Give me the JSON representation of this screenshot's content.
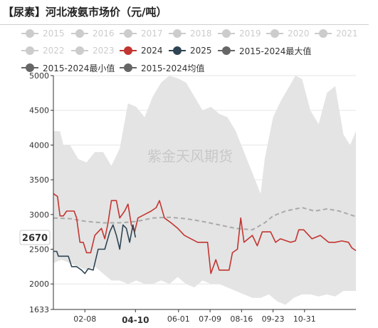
{
  "title": "【尿素】河北液氨市场价（元/吨）",
  "watermark": "紫金天风期货",
  "legend": [
    {
      "label": "2015",
      "color": "#cccccc",
      "shape": "circle",
      "active": false
    },
    {
      "label": "2016",
      "color": "#cccccc",
      "shape": "circle",
      "active": false
    },
    {
      "label": "2017",
      "color": "#cccccc",
      "shape": "circle",
      "active": false
    },
    {
      "label": "2018",
      "color": "#cccccc",
      "shape": "circle",
      "active": false
    },
    {
      "label": "2019",
      "color": "#cccccc",
      "shape": "circle",
      "active": false
    },
    {
      "label": "2020",
      "color": "#cccccc",
      "shape": "circle",
      "active": false
    },
    {
      "label": "2021",
      "color": "#cccccc",
      "shape": "circle",
      "active": false
    },
    {
      "label": "2022",
      "color": "#cccccc",
      "shape": "circle",
      "active": false
    },
    {
      "label": "2023",
      "color": "#cccccc",
      "shape": "circle",
      "active": false
    },
    {
      "label": "2024",
      "color": "#c23531",
      "shape": "circle",
      "active": true
    },
    {
      "label": "2025",
      "color": "#2f4554",
      "shape": "circle",
      "active": true
    },
    {
      "label": "2015-2024最大值",
      "color": "#666666",
      "shape": "circle",
      "active": true
    },
    {
      "label": "2015-2024最小值",
      "color": "#666666",
      "shape": "circle",
      "active": true
    },
    {
      "label": "2015-2024均值",
      "color": "#666666",
      "shape": "circle",
      "active": true
    }
  ],
  "chart_data": {
    "type": "line",
    "title": "【尿素】河北液氨市场价（元/吨）",
    "ylim": [
      1633,
      5000
    ],
    "y_ticks": [
      2000,
      2500,
      3000,
      3500,
      4000,
      4500,
      5000
    ],
    "y_min_label": "1633",
    "x_domain": [
      0,
      365
    ],
    "x_tick_labels": [
      {
        "label": "02-08",
        "day": 38
      },
      {
        "label": "04-10",
        "day": 99
      },
      {
        "label": "06-01",
        "day": 151
      },
      {
        "label": "07-09",
        "day": 189
      },
      {
        "label": "08-16",
        "day": 227
      },
      {
        "label": "09-23",
        "day": 265
      },
      {
        "label": "10-31",
        "day": 303
      }
    ],
    "hover": {
      "x_label": "04-10",
      "x_day": 99,
      "y_value": 2670
    },
    "colors": {
      "y2024": "#c23531",
      "y2025": "#2f4554",
      "band": "#e4e4e4",
      "mean": "#aaaaaa"
    },
    "band_max": [
      [
        0,
        4200
      ],
      [
        8,
        4200
      ],
      [
        12,
        4000
      ],
      [
        20,
        4000
      ],
      [
        30,
        3800
      ],
      [
        40,
        3750
      ],
      [
        50,
        3900
      ],
      [
        60,
        3900
      ],
      [
        70,
        3700
      ],
      [
        80,
        3950
      ],
      [
        90,
        4600
      ],
      [
        100,
        4550
      ],
      [
        110,
        4400
      ],
      [
        120,
        4700
      ],
      [
        130,
        4900
      ],
      [
        140,
        5000
      ],
      [
        150,
        4960
      ],
      [
        160,
        4900
      ],
      [
        170,
        4700
      ],
      [
        180,
        4500
      ],
      [
        190,
        4550
      ],
      [
        200,
        4450
      ],
      [
        210,
        4400
      ],
      [
        220,
        4200
      ],
      [
        230,
        3900
      ],
      [
        240,
        3600
      ],
      [
        250,
        3300
      ],
      [
        255,
        3800
      ],
      [
        265,
        4400
      ],
      [
        275,
        4650
      ],
      [
        285,
        4850
      ],
      [
        292,
        5000
      ],
      [
        300,
        4950
      ],
      [
        310,
        4500
      ],
      [
        320,
        4300
      ],
      [
        330,
        4750
      ],
      [
        340,
        4850
      ],
      [
        350,
        4150
      ],
      [
        358,
        4000
      ],
      [
        365,
        4200
      ]
    ],
    "band_min": [
      [
        0,
        2300
      ],
      [
        10,
        2350
      ],
      [
        20,
        2300
      ],
      [
        30,
        2250
      ],
      [
        40,
        2200
      ],
      [
        50,
        2250
      ],
      [
        60,
        2150
      ],
      [
        70,
        2050
      ],
      [
        80,
        2050
      ],
      [
        90,
        2000
      ],
      [
        100,
        2050
      ],
      [
        110,
        2000
      ],
      [
        120,
        2000
      ],
      [
        130,
        2050
      ],
      [
        140,
        2000
      ],
      [
        150,
        2100
      ],
      [
        160,
        2000
      ],
      [
        170,
        1950
      ],
      [
        180,
        2050
      ],
      [
        190,
        2000
      ],
      [
        200,
        2000
      ],
      [
        210,
        1950
      ],
      [
        220,
        1900
      ],
      [
        230,
        1850
      ],
      [
        240,
        1800
      ],
      [
        250,
        1800
      ],
      [
        260,
        1850
      ],
      [
        270,
        1750
      ],
      [
        280,
        1700
      ],
      [
        290,
        1800
      ],
      [
        300,
        1850
      ],
      [
        310,
        1850
      ],
      [
        320,
        1820
      ],
      [
        330,
        1850
      ],
      [
        340,
        1820
      ],
      [
        350,
        1900
      ],
      [
        365,
        1900
      ]
    ],
    "series": [
      {
        "name": "2015-2024均值",
        "style": "dashed",
        "points": [
          [
            0,
            2950
          ],
          [
            20,
            2940
          ],
          [
            40,
            2900
          ],
          [
            60,
            2880
          ],
          [
            80,
            2880
          ],
          [
            100,
            2900
          ],
          [
            120,
            2950
          ],
          [
            140,
            2960
          ],
          [
            160,
            2940
          ],
          [
            180,
            2900
          ],
          [
            200,
            2850
          ],
          [
            220,
            2800
          ],
          [
            240,
            2780
          ],
          [
            255,
            2880
          ],
          [
            265,
            2980
          ],
          [
            280,
            3050
          ],
          [
            300,
            3100
          ],
          [
            315,
            3050
          ],
          [
            330,
            3080
          ],
          [
            345,
            3050
          ],
          [
            365,
            2970
          ]
        ]
      },
      {
        "name": "2024",
        "style": "solid",
        "points": [
          [
            0,
            3300
          ],
          [
            5,
            3260
          ],
          [
            8,
            2980
          ],
          [
            12,
            2980
          ],
          [
            16,
            3050
          ],
          [
            25,
            3050
          ],
          [
            28,
            2950
          ],
          [
            32,
            2600
          ],
          [
            36,
            2600
          ],
          [
            40,
            2450
          ],
          [
            45,
            2450
          ],
          [
            50,
            2700
          ],
          [
            58,
            2800
          ],
          [
            62,
            2650
          ],
          [
            66,
            2880
          ],
          [
            70,
            3200
          ],
          [
            76,
            3200
          ],
          [
            80,
            2950
          ],
          [
            86,
            3050
          ],
          [
            90,
            3150
          ],
          [
            94,
            2850
          ],
          [
            98,
            2750
          ],
          [
            102,
            2950
          ],
          [
            110,
            3000
          ],
          [
            118,
            3050
          ],
          [
            124,
            3100
          ],
          [
            128,
            3200
          ],
          [
            134,
            2950
          ],
          [
            142,
            2880
          ],
          [
            150,
            2800
          ],
          [
            158,
            2700
          ],
          [
            166,
            2650
          ],
          [
            174,
            2600
          ],
          [
            182,
            2600
          ],
          [
            186,
            2600
          ],
          [
            190,
            2150
          ],
          [
            196,
            2350
          ],
          [
            200,
            2200
          ],
          [
            206,
            2200
          ],
          [
            212,
            2200
          ],
          [
            216,
            2450
          ],
          [
            222,
            2500
          ],
          [
            226,
            2950
          ],
          [
            230,
            2600
          ],
          [
            240,
            2700
          ],
          [
            246,
            2550
          ],
          [
            252,
            2750
          ],
          [
            262,
            2750
          ],
          [
            268,
            2600
          ],
          [
            274,
            2650
          ],
          [
            286,
            2600
          ],
          [
            292,
            2620
          ],
          [
            296,
            2780
          ],
          [
            302,
            2780
          ],
          [
            312,
            2650
          ],
          [
            322,
            2700
          ],
          [
            332,
            2600
          ],
          [
            340,
            2600
          ],
          [
            348,
            2620
          ],
          [
            356,
            2600
          ],
          [
            360,
            2520
          ],
          [
            365,
            2480
          ]
        ]
      },
      {
        "name": "2025",
        "style": "solid",
        "points": [
          [
            0,
            2470
          ],
          [
            4,
            2470
          ],
          [
            6,
            2400
          ],
          [
            18,
            2400
          ],
          [
            22,
            2250
          ],
          [
            28,
            2250
          ],
          [
            34,
            2200
          ],
          [
            38,
            2150
          ],
          [
            42,
            2220
          ],
          [
            48,
            2200
          ],
          [
            54,
            2500
          ],
          [
            62,
            2500
          ],
          [
            68,
            2750
          ],
          [
            72,
            2850
          ],
          [
            76,
            2700
          ],
          [
            80,
            2500
          ],
          [
            84,
            2850
          ],
          [
            88,
            2800
          ],
          [
            92,
            2600
          ],
          [
            96,
            2850
          ],
          [
            99,
            2670
          ]
        ]
      }
    ]
  }
}
